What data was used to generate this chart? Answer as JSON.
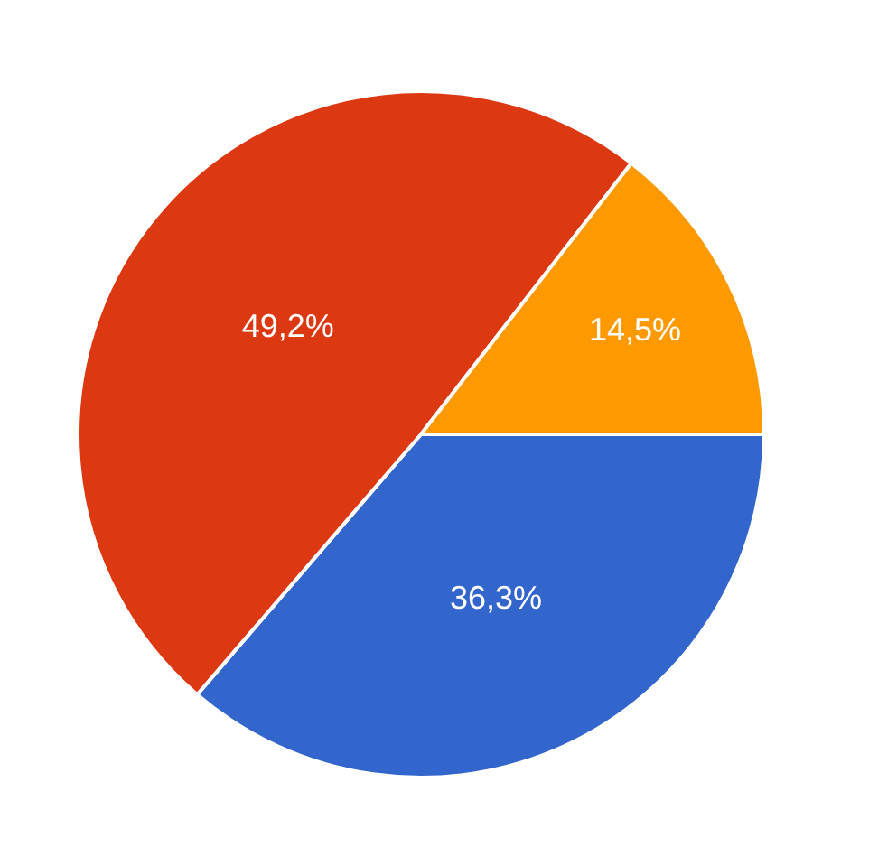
{
  "chart_data": {
    "type": "pie",
    "categories": [
      null,
      null,
      null
    ],
    "values": [
      36.3,
      49.2,
      14.5
    ],
    "colors": [
      "#3366cc",
      "#dc3912",
      "#ff9900"
    ],
    "value_labels": [
      "36,3%",
      "49,2%",
      "14,5%"
    ]
  }
}
